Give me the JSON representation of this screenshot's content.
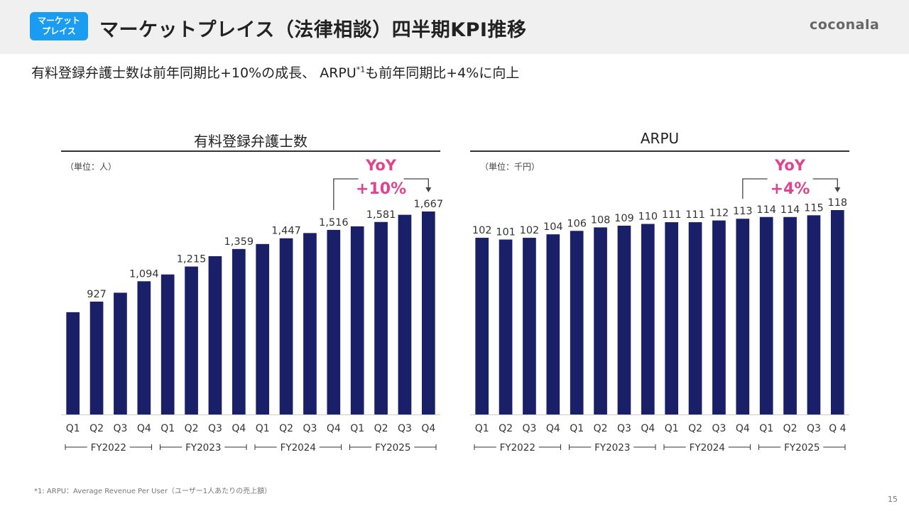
{
  "header": {
    "badge": "マーケット\nプレイス",
    "title": "マーケットプレイス（法律相談）四半期KPI推移",
    "logo": "coconala",
    "badge_color": "#1a9cf0"
  },
  "subtitle": {
    "text_before": "有料登録弁護士数は前年同期比+10%の成長、 ARPU",
    "superscript": "*1",
    "text_after": "も前年同期比+4%に向上"
  },
  "footnote": "*1: ARPU：Average Revenue Per User（ユーザー1人あたりの売上額）",
  "page_number": "15",
  "colors": {
    "bar": "#1a2068",
    "yoy": "#e0448e",
    "axis": "#cccccc"
  },
  "chart_data": [
    {
      "type": "bar",
      "title": "有料登録弁護士数",
      "unit_label": "（単位：人）",
      "categories": [
        "Q1",
        "Q2",
        "Q3",
        "Q4",
        "Q1",
        "Q2",
        "Q3",
        "Q4",
        "Q1",
        "Q2",
        "Q3",
        "Q4",
        "Q1",
        "Q2",
        "Q3",
        "Q4"
      ],
      "fiscal_years": [
        "FY2022",
        "FY2023",
        "FY2024",
        "FY2025"
      ],
      "values": [
        840,
        927,
        1000,
        1094,
        1150,
        1215,
        1300,
        1359,
        1400,
        1447,
        1490,
        1516,
        1545,
        1581,
        1640,
        1667
      ],
      "data_labels": [
        "",
        "927",
        "",
        "1,094",
        "",
        "1,215",
        "",
        "1,359",
        "",
        "1,447",
        "",
        "1,516",
        "",
        "1,581",
        "",
        "1,667"
      ],
      "ylim": [
        0,
        1750
      ],
      "annotation": {
        "line1": "YoY",
        "line2": "+10%",
        "from_index": 11,
        "to_index": 15
      }
    },
    {
      "type": "bar",
      "title": "ARPU",
      "unit_label": "（単位：千円）",
      "categories": [
        "Q1",
        "Q2",
        "Q3",
        "Q4",
        "Q1",
        "Q2",
        "Q3",
        "Q4",
        "Q1",
        "Q2",
        "Q3",
        "Q4",
        "Q1",
        "Q2",
        "Q3",
        "Q 4"
      ],
      "fiscal_years": [
        "FY2022",
        "FY2023",
        "FY2024",
        "FY2025"
      ],
      "values": [
        102,
        101,
        102,
        104,
        106,
        108,
        109,
        110,
        111,
        111,
        112,
        113,
        114,
        114,
        115,
        118
      ],
      "data_labels": [
        "102",
        "101",
        "102",
        "104",
        "106",
        "108",
        "109",
        "110",
        "111",
        "111",
        "112",
        "113",
        "114",
        "114",
        "115",
        "118"
      ],
      "ylim": [
        0,
        125
      ],
      "annotation": {
        "line1": "YoY",
        "line2": "+4%",
        "from_index": 11,
        "to_index": 15
      }
    }
  ]
}
